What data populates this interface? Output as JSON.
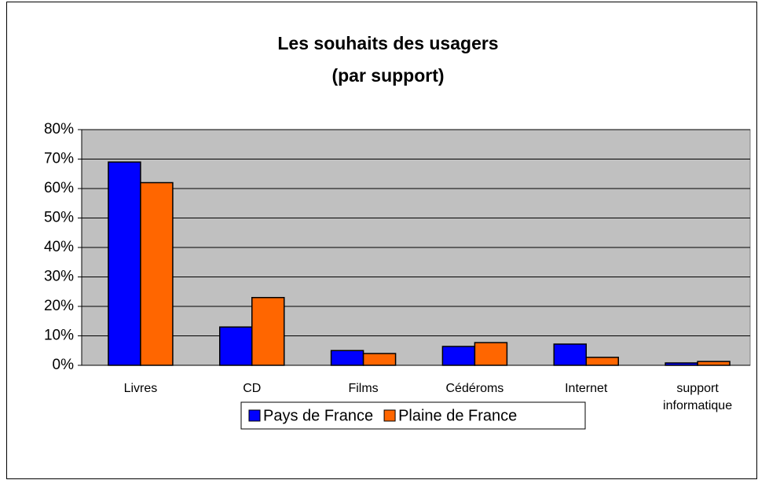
{
  "chart_data": {
    "type": "bar",
    "title": "Les souhaits des usagers",
    "subtitle": "(par support)",
    "categories": [
      "Livres",
      "CD",
      "Films",
      "Cédéroms",
      "Internet",
      "support informatique"
    ],
    "series": [
      {
        "name": "Pays de France",
        "color": "#0000ff",
        "values": [
          69,
          13,
          5,
          6.4,
          7.2,
          0.8
        ]
      },
      {
        "name": "Plaine de France",
        "color": "#ff6600",
        "values": [
          62,
          23,
          4,
          7.7,
          2.7,
          1.3
        ]
      }
    ],
    "ylim": [
      0,
      80
    ],
    "yticks": [
      {
        "value": 0,
        "label": "0%"
      },
      {
        "value": 10,
        "label": "10%"
      },
      {
        "value": 20,
        "label": "20%"
      },
      {
        "value": 30,
        "label": "30%"
      },
      {
        "value": 40,
        "label": "40%"
      },
      {
        "value": 50,
        "label": "50%"
      },
      {
        "value": 60,
        "label": "60%"
      },
      {
        "value": 70,
        "label": "70%"
      },
      {
        "value": 80,
        "label": "80%"
      }
    ],
    "grid": true,
    "legend": "bottom"
  }
}
